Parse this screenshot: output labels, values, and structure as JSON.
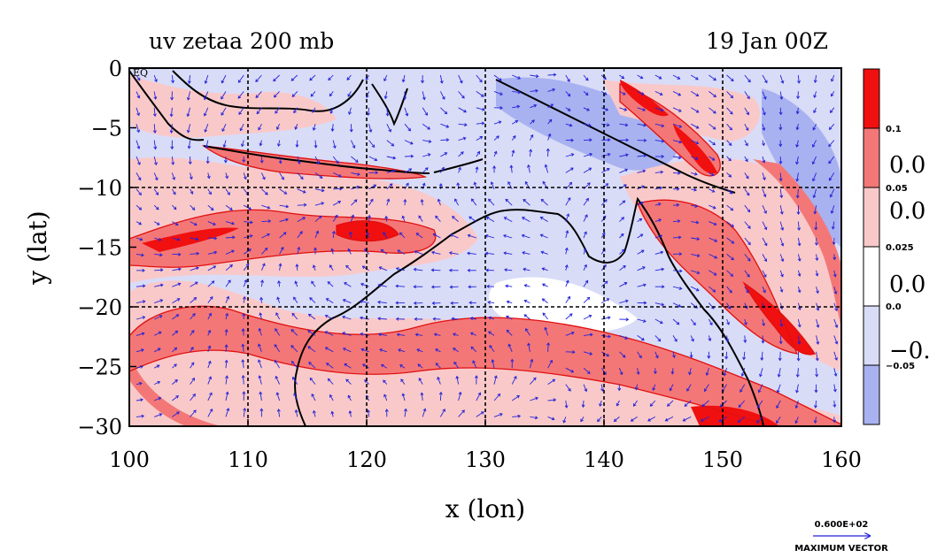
{
  "chart_data": {
    "type": "heatmap",
    "title_left": "uv zetaa 200 mb",
    "title_right": "19 Jan 00Z",
    "xlabel": "x (lon)",
    "ylabel": "y (lat)",
    "xlim": [
      100,
      160
    ],
    "ylim": [
      -30,
      0
    ],
    "x_ticks": [
      100,
      110,
      120,
      130,
      140,
      150,
      160
    ],
    "y_ticks": [
      0,
      -5,
      -10,
      -15,
      -20,
      -25,
      -30
    ],
    "x_tick_labels": [
      "100",
      "110",
      "120",
      "130",
      "140",
      "150",
      "160"
    ],
    "y_tick_labels": [
      "0",
      "−5",
      "−10",
      "−15",
      "−20",
      "−25",
      "−30"
    ],
    "gridlines_x": [
      110,
      120,
      130,
      140,
      150
    ],
    "gridlines_y": [
      -10,
      -20
    ],
    "corner_label": "EQ",
    "colorbar": {
      "levels": [
        {
          "color": "#f01010"
        },
        {
          "color": "#f47777"
        },
        {
          "color": "#f9c9c9"
        },
        {
          "color": "#ffffff"
        },
        {
          "color": "#d9dcf7"
        },
        {
          "color": "#a9b2f0"
        }
      ],
      "small_labels": [
        "0.1",
        "0.05",
        "0.025",
        "0.0",
        "−0.05"
      ],
      "large_labels": [
        "0.0",
        "0.0",
        "0.0",
        "−0."
      ]
    },
    "vector_legend": {
      "value": "0.600E+02",
      "caption": "MAXIMUM VECTOR"
    },
    "colors": {
      "strong_pos": "#f01010",
      "pos": "#f47777",
      "weak_pos": "#f9c9c9",
      "neutral": "#ffffff",
      "weak_neg": "#d9dcf7",
      "neg": "#a9b2f0",
      "contour": "#e01010",
      "vector": "#2323d8",
      "coast": "#000000"
    }
  }
}
